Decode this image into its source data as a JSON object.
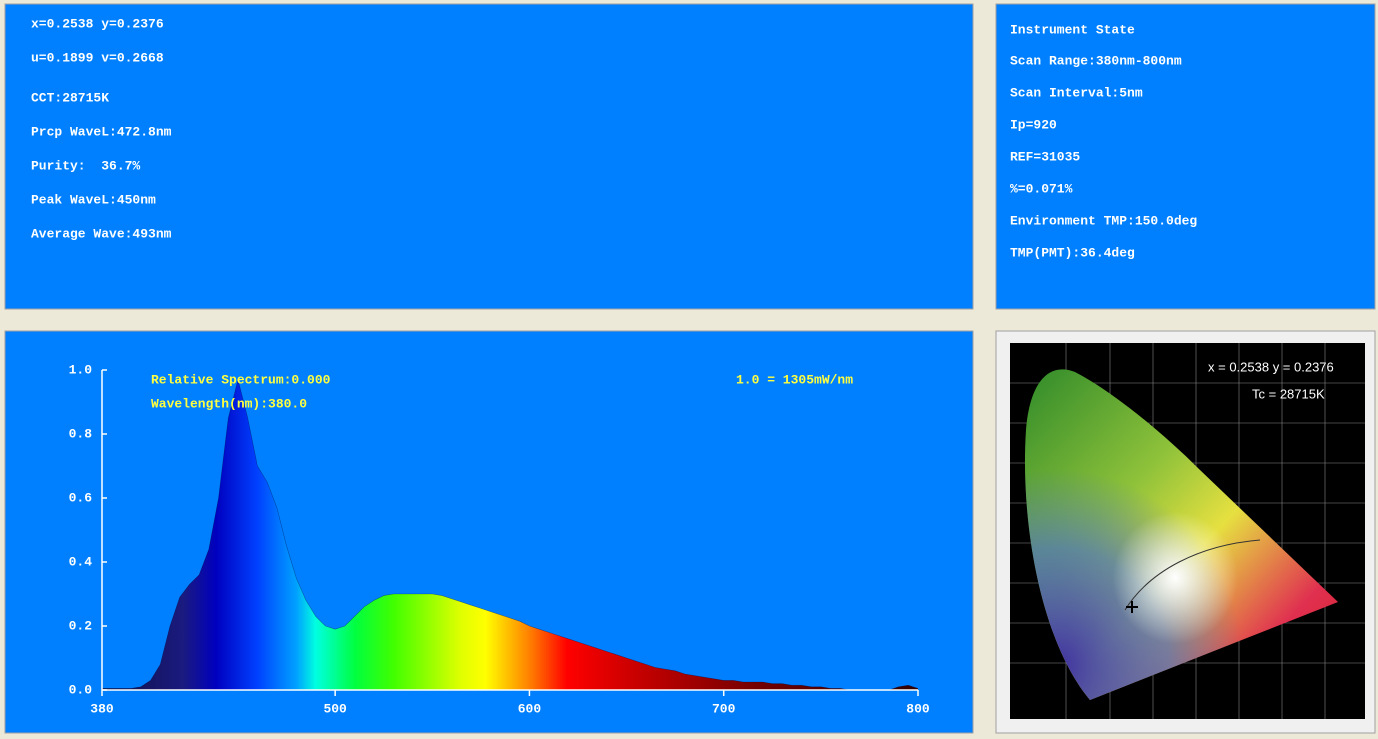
{
  "info_panel": {
    "lines": [
      "x=0.2538 y=0.2376",
      "u=0.1899 v=0.2668",
      "CCT:28715K",
      "Prcp WaveL:472.8nm",
      "Purity:  36.7%",
      "Peak WaveL:450nm",
      "Average Wave:493nm"
    ]
  },
  "instrument_panel": {
    "title": "Instrument State",
    "lines": [
      "Scan Range:380nm-800nm",
      "Scan Interval:5nm",
      "Ip=920",
      "REF=31035",
      "%=0.071%",
      "Environment TMP:150.0deg",
      "TMP(PMT):36.4deg"
    ]
  },
  "chart_data": {
    "type": "area",
    "annotations": [
      "Relative Spectrum:0.000",
      "Wavelength(nm):380.0",
      "1.0 = 1305mW/nm"
    ],
    "x": [
      380,
      385,
      390,
      395,
      400,
      405,
      410,
      415,
      420,
      425,
      430,
      435,
      440,
      445,
      450,
      455,
      460,
      465,
      470,
      475,
      480,
      485,
      490,
      495,
      500,
      505,
      510,
      515,
      520,
      525,
      530,
      535,
      540,
      545,
      550,
      555,
      560,
      565,
      570,
      575,
      580,
      585,
      590,
      595,
      600,
      605,
      610,
      615,
      620,
      625,
      630,
      635,
      640,
      645,
      650,
      655,
      660,
      665,
      670,
      675,
      680,
      685,
      690,
      695,
      700,
      705,
      710,
      715,
      720,
      725,
      730,
      735,
      740,
      745,
      750,
      755,
      760,
      765,
      770,
      775,
      780,
      785,
      790,
      795,
      800
    ],
    "values": [
      0.005,
      0.005,
      0.005,
      0.005,
      0.01,
      0.03,
      0.08,
      0.2,
      0.29,
      0.33,
      0.36,
      0.44,
      0.6,
      0.85,
      0.97,
      0.85,
      0.7,
      0.65,
      0.57,
      0.45,
      0.35,
      0.28,
      0.23,
      0.2,
      0.19,
      0.2,
      0.23,
      0.26,
      0.28,
      0.295,
      0.3,
      0.3,
      0.3,
      0.3,
      0.3,
      0.295,
      0.285,
      0.275,
      0.265,
      0.255,
      0.245,
      0.235,
      0.225,
      0.215,
      0.2,
      0.19,
      0.18,
      0.17,
      0.16,
      0.15,
      0.14,
      0.13,
      0.12,
      0.11,
      0.1,
      0.09,
      0.08,
      0.07,
      0.065,
      0.06,
      0.05,
      0.045,
      0.04,
      0.035,
      0.03,
      0.03,
      0.025,
      0.025,
      0.025,
      0.02,
      0.02,
      0.015,
      0.015,
      0.01,
      0.01,
      0.005,
      0.005,
      0,
      0,
      0,
      0,
      0,
      0.01,
      0.015,
      0.005
    ],
    "xlim": [
      380,
      800
    ],
    "xticks": [
      380,
      500,
      600,
      700,
      800
    ],
    "ylim": [
      0,
      1
    ],
    "yticks": [
      {
        "value": 0,
        "label": "0.0"
      },
      0.2,
      0.4,
      0.6,
      0.8,
      {
        "value": 1,
        "label": "1.0"
      }
    ]
  },
  "cie_panel": {
    "coordinates": "x = 0.2538 y = 0.2376",
    "temperature": "Tc = 28715K"
  }
}
